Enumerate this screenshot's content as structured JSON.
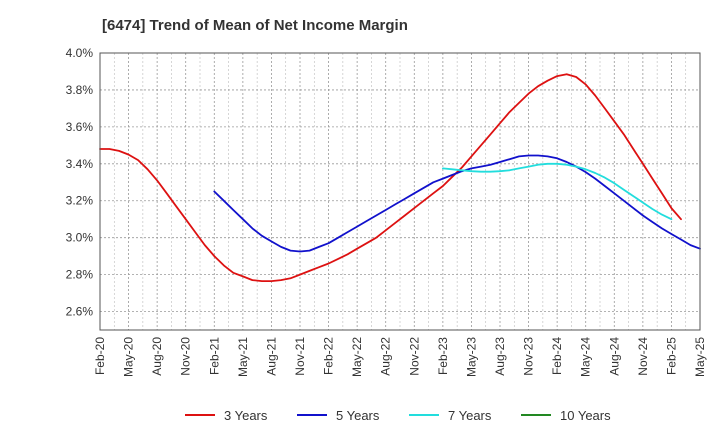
{
  "chart_data": {
    "type": "line",
    "title": "[6474]  Trend of Mean of Net Income Margin",
    "xlabel": "",
    "ylabel": "",
    "x_ticks": [
      "Feb-20",
      "May-20",
      "Aug-20",
      "Nov-20",
      "Feb-21",
      "May-21",
      "Aug-21",
      "Nov-21",
      "Feb-22",
      "May-22",
      "Aug-22",
      "Nov-22",
      "Feb-23",
      "May-23",
      "Aug-23",
      "Nov-23",
      "Feb-24",
      "May-24",
      "Aug-24",
      "Nov-24",
      "Feb-25",
      "May-25"
    ],
    "y_ticks": [
      "2.6%",
      "2.8%",
      "3.0%",
      "3.2%",
      "3.4%",
      "3.6%",
      "3.8%",
      "4.0%"
    ],
    "ylim": [
      2.5,
      4.0
    ],
    "y_unit": "%",
    "grid": true,
    "legend_position": "bottom",
    "series": [
      {
        "name": "3 Years",
        "color": "#dd1111",
        "points": [
          [
            "Feb-20",
            3.48
          ],
          [
            "Mar-20",
            3.48
          ],
          [
            "Apr-20",
            3.47
          ],
          [
            "May-20",
            3.45
          ],
          [
            "Jun-20",
            3.42
          ],
          [
            "Jul-20",
            3.37
          ],
          [
            "Aug-20",
            3.31
          ],
          [
            "Sep-20",
            3.24
          ],
          [
            "Oct-20",
            3.17
          ],
          [
            "Nov-20",
            3.1
          ],
          [
            "Dec-20",
            3.03
          ],
          [
            "Jan-21",
            2.96
          ],
          [
            "Feb-21",
            2.9
          ],
          [
            "Mar-21",
            2.85
          ],
          [
            "Apr-21",
            2.81
          ],
          [
            "May-21",
            2.79
          ],
          [
            "Jun-21",
            2.77
          ],
          [
            "Jul-21",
            2.765
          ],
          [
            "Aug-21",
            2.765
          ],
          [
            "Sep-21",
            2.77
          ],
          [
            "Oct-21",
            2.78
          ],
          [
            "Nov-21",
            2.8
          ],
          [
            "Dec-21",
            2.82
          ],
          [
            "Jan-22",
            2.84
          ],
          [
            "Feb-22",
            2.86
          ],
          [
            "Mar-22",
            2.885
          ],
          [
            "Apr-22",
            2.91
          ],
          [
            "May-22",
            2.94
          ],
          [
            "Jun-22",
            2.97
          ],
          [
            "Jul-22",
            3.0
          ],
          [
            "Aug-22",
            3.04
          ],
          [
            "Sep-22",
            3.08
          ],
          [
            "Oct-22",
            3.12
          ],
          [
            "Nov-22",
            3.16
          ],
          [
            "Dec-22",
            3.2
          ],
          [
            "Jan-23",
            3.24
          ],
          [
            "Feb-23",
            3.28
          ],
          [
            "Mar-23",
            3.33
          ],
          [
            "Apr-23",
            3.38
          ],
          [
            "May-23",
            3.44
          ],
          [
            "Jun-23",
            3.5
          ],
          [
            "Jul-23",
            3.56
          ],
          [
            "Aug-23",
            3.62
          ],
          [
            "Sep-23",
            3.68
          ],
          [
            "Oct-23",
            3.73
          ],
          [
            "Nov-23",
            3.78
          ],
          [
            "Dec-23",
            3.82
          ],
          [
            "Jan-24",
            3.85
          ],
          [
            "Feb-24",
            3.875
          ],
          [
            "Mar-24",
            3.885
          ],
          [
            "Apr-24",
            3.87
          ],
          [
            "May-24",
            3.83
          ],
          [
            "Jun-24",
            3.77
          ],
          [
            "Jul-24",
            3.7
          ],
          [
            "Aug-24",
            3.63
          ],
          [
            "Sep-24",
            3.56
          ],
          [
            "Oct-24",
            3.48
          ],
          [
            "Nov-24",
            3.4
          ],
          [
            "Dec-24",
            3.32
          ],
          [
            "Jan-25",
            3.24
          ],
          [
            "Feb-25",
            3.16
          ],
          [
            "Mar-25",
            3.1
          ]
        ]
      },
      {
        "name": "5 Years",
        "color": "#1111cc",
        "points": [
          [
            "Feb-21",
            3.25
          ],
          [
            "Mar-21",
            3.2
          ],
          [
            "Apr-21",
            3.15
          ],
          [
            "May-21",
            3.1
          ],
          [
            "Jun-21",
            3.05
          ],
          [
            "Jul-21",
            3.01
          ],
          [
            "Aug-21",
            2.98
          ],
          [
            "Sep-21",
            2.95
          ],
          [
            "Oct-21",
            2.93
          ],
          [
            "Nov-21",
            2.925
          ],
          [
            "Dec-21",
            2.93
          ],
          [
            "Jan-22",
            2.95
          ],
          [
            "Feb-22",
            2.97
          ],
          [
            "Mar-22",
            3.0
          ],
          [
            "Apr-22",
            3.03
          ],
          [
            "May-22",
            3.06
          ],
          [
            "Jun-22",
            3.09
          ],
          [
            "Jul-22",
            3.12
          ],
          [
            "Aug-22",
            3.15
          ],
          [
            "Sep-22",
            3.18
          ],
          [
            "Oct-22",
            3.21
          ],
          [
            "Nov-22",
            3.24
          ],
          [
            "Dec-22",
            3.27
          ],
          [
            "Jan-23",
            3.3
          ],
          [
            "Feb-23",
            3.32
          ],
          [
            "Mar-23",
            3.34
          ],
          [
            "Apr-23",
            3.36
          ],
          [
            "May-23",
            3.375
          ],
          [
            "Jun-23",
            3.385
          ],
          [
            "Jul-23",
            3.395
          ],
          [
            "Aug-23",
            3.41
          ],
          [
            "Sep-23",
            3.425
          ],
          [
            "Oct-23",
            3.44
          ],
          [
            "Nov-23",
            3.445
          ],
          [
            "Dec-23",
            3.445
          ],
          [
            "Jan-24",
            3.44
          ],
          [
            "Feb-24",
            3.43
          ],
          [
            "Mar-24",
            3.41
          ],
          [
            "Apr-24",
            3.385
          ],
          [
            "May-24",
            3.355
          ],
          [
            "Jun-24",
            3.32
          ],
          [
            "Jul-24",
            3.28
          ],
          [
            "Aug-24",
            3.24
          ],
          [
            "Sep-24",
            3.2
          ],
          [
            "Oct-24",
            3.16
          ],
          [
            "Nov-24",
            3.12
          ],
          [
            "Dec-24",
            3.085
          ],
          [
            "Jan-25",
            3.05
          ],
          [
            "Feb-25",
            3.02
          ],
          [
            "Mar-25",
            2.99
          ],
          [
            "Apr-25",
            2.96
          ],
          [
            "May-25",
            2.94
          ]
        ]
      },
      {
        "name": "7 Years",
        "color": "#22dddd",
        "points": [
          [
            "Feb-23",
            3.375
          ],
          [
            "Mar-23",
            3.37
          ],
          [
            "Apr-23",
            3.365
          ],
          [
            "May-23",
            3.36
          ],
          [
            "Jun-23",
            3.357
          ],
          [
            "Jul-23",
            3.357
          ],
          [
            "Aug-23",
            3.36
          ],
          [
            "Sep-23",
            3.365
          ],
          [
            "Oct-23",
            3.375
          ],
          [
            "Nov-23",
            3.385
          ],
          [
            "Dec-23",
            3.395
          ],
          [
            "Jan-24",
            3.4
          ],
          [
            "Feb-24",
            3.4
          ],
          [
            "Mar-24",
            3.395
          ],
          [
            "Apr-24",
            3.385
          ],
          [
            "May-24",
            3.37
          ],
          [
            "Jun-24",
            3.35
          ],
          [
            "Jul-24",
            3.325
          ],
          [
            "Aug-24",
            3.295
          ],
          [
            "Sep-24",
            3.26
          ],
          [
            "Oct-24",
            3.225
          ],
          [
            "Nov-24",
            3.19
          ],
          [
            "Dec-24",
            3.155
          ],
          [
            "Jan-25",
            3.125
          ],
          [
            "Feb-25",
            3.1
          ]
        ]
      },
      {
        "name": "10 Years",
        "color": "#228822",
        "points": []
      }
    ]
  }
}
